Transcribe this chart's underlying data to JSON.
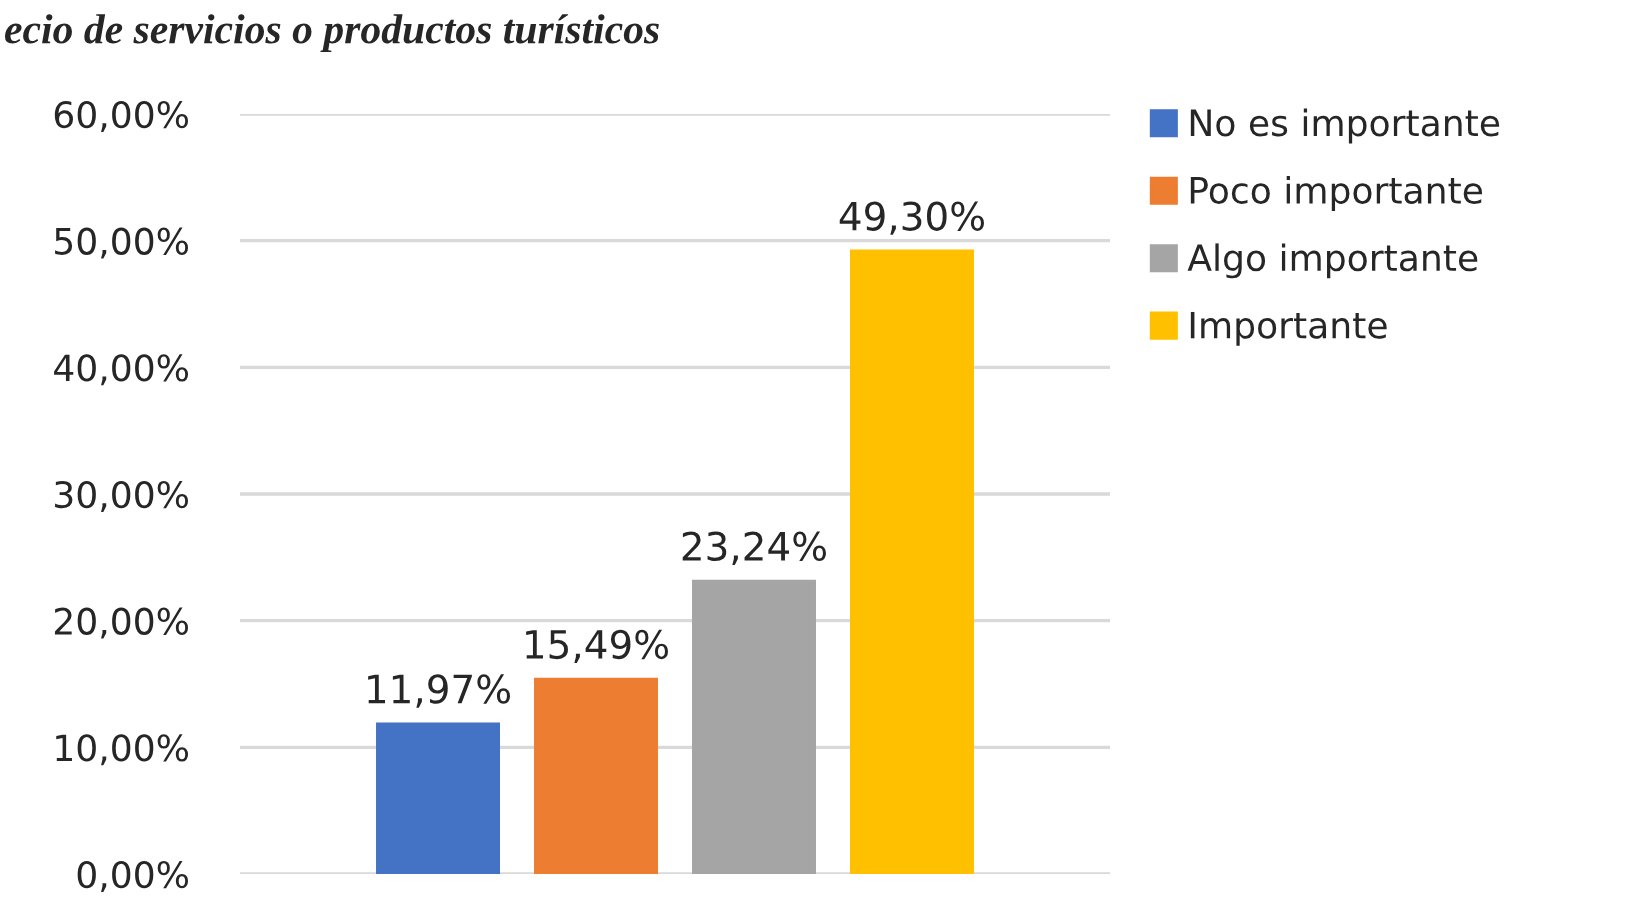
{
  "chart_data": {
    "type": "bar",
    "title": "ecio de servicios o productos turísticos",
    "categories": [
      null
    ],
    "series": [
      {
        "name": "No es importante",
        "color": "#4472c4",
        "values": [
          11.97
        ],
        "value_labels": [
          "11,97%"
        ]
      },
      {
        "name": "Poco importante",
        "color": "#ed7d31",
        "values": [
          15.49
        ],
        "value_labels": [
          "15,49%"
        ]
      },
      {
        "name": "Algo importante",
        "color": "#a5a5a5",
        "values": [
          23.24
        ],
        "value_labels": [
          "23,24%"
        ]
      },
      {
        "name": "Importante",
        "color": "#ffc000",
        "values": [
          49.3
        ],
        "value_labels": [
          "49,30%"
        ]
      }
    ],
    "ylim": [
      0,
      60
    ],
    "yticks": [
      {
        "value": 0,
        "label": "0,00%"
      },
      {
        "value": 10,
        "label": "10,00%"
      },
      {
        "value": 20,
        "label": "20,00%"
      },
      {
        "value": 30,
        "label": "30,00%"
      },
      {
        "value": 40,
        "label": "40,00%"
      },
      {
        "value": 50,
        "label": "50,00%"
      },
      {
        "value": 60,
        "label": "60,00%"
      }
    ],
    "grid": "y",
    "legend": "right"
  }
}
